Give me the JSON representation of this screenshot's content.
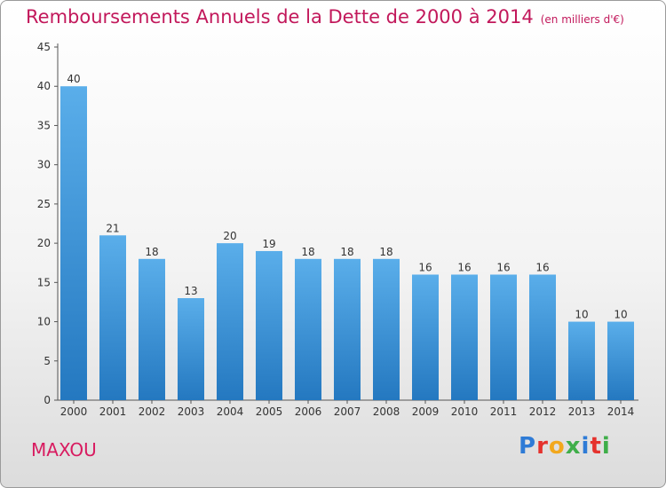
{
  "header": {
    "title": "Remboursements Annuels de la Dette de 2000 à 2014",
    "unit": "(en milliers d'€)"
  },
  "footer": {
    "commune": "MAXOU",
    "brand": "Proxiti"
  },
  "colors": {
    "title": "#c2185b",
    "bar_top": "#5aaeea",
    "bar_bottom": "#2478c0"
  },
  "chart_data": {
    "type": "bar",
    "title": "Remboursements Annuels de la Dette de 2000 à 2014",
    "subtitle": "(en milliers d'€)",
    "xlabel": "",
    "ylabel": "",
    "categories": [
      "2000",
      "2001",
      "2002",
      "2003",
      "2004",
      "2005",
      "2006",
      "2007",
      "2008",
      "2009",
      "2010",
      "2011",
      "2012",
      "2013",
      "2014"
    ],
    "values": [
      40,
      21,
      18,
      13,
      20,
      19,
      18,
      18,
      18,
      16,
      16,
      16,
      16,
      10,
      10
    ],
    "ylim": [
      0,
      45
    ],
    "yticks": [
      0,
      5,
      10,
      15,
      20,
      25,
      30,
      35,
      40,
      45
    ],
    "grid": false,
    "legend": "none"
  }
}
